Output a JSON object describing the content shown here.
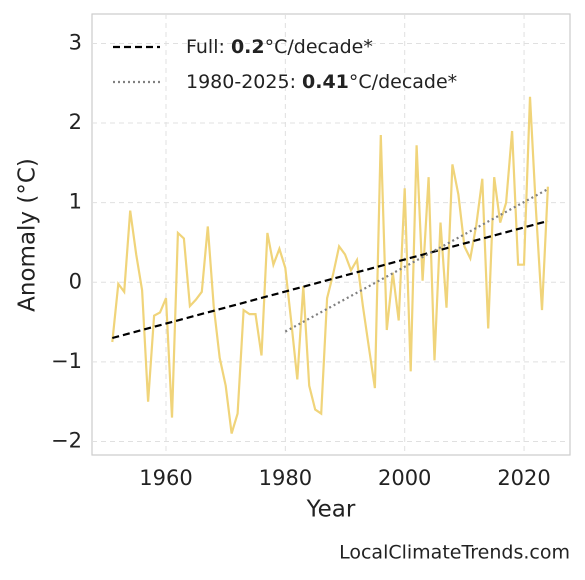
{
  "chart_data": {
    "type": "line",
    "xlabel": "Year",
    "ylabel": "Anomaly (°C)",
    "watermark": "LocalClimateTrends.com",
    "xlim": [
      1947.6,
      2027.7
    ],
    "xticks": [
      1960,
      1980,
      2000,
      2020
    ],
    "ylim": [
      -2.17,
      3.37
    ],
    "yticks": [
      {
        "value": -2,
        "label": "−2"
      },
      {
        "value": -1,
        "label": "−1"
      },
      0,
      1,
      2,
      3
    ],
    "grid": true,
    "legend": "upper left",
    "series": [
      {
        "color": "#f0d47a",
        "style": "solid",
        "x": [
          1951,
          1952,
          1953,
          1954,
          1955,
          1956,
          1957,
          1958,
          1959,
          1960,
          1961,
          1962,
          1963,
          1964,
          1965,
          1966,
          1967,
          1968,
          1969,
          1970,
          1971,
          1972,
          1973,
          1974,
          1975,
          1976,
          1977,
          1978,
          1979,
          1980,
          1981,
          1982,
          1983,
          1984,
          1985,
          1986,
          1987,
          1988,
          1989,
          1990,
          1991,
          1992,
          1993,
          1994,
          1995,
          1996,
          1997,
          1998,
          1999,
          2000,
          2001,
          2002,
          2003,
          2004,
          2005,
          2006,
          2007,
          2008,
          2009,
          2010,
          2011,
          2012,
          2013,
          2014,
          2015,
          2016,
          2017,
          2018,
          2019,
          2020,
          2021,
          2022,
          2023,
          2024
        ],
        "values": [
          -0.75,
          -0.02,
          -0.12,
          0.9,
          0.35,
          -0.1,
          -1.5,
          -0.42,
          -0.38,
          -0.2,
          -1.7,
          0.62,
          0.55,
          -0.3,
          -0.22,
          -0.12,
          0.7,
          -0.3,
          -0.95,
          -1.3,
          -1.9,
          -1.65,
          -0.35,
          -0.4,
          -0.4,
          -0.92,
          0.62,
          0.22,
          0.42,
          0.18,
          -0.5,
          -1.22,
          -0.05,
          -1.3,
          -1.6,
          -1.65,
          -0.2,
          0.1,
          0.45,
          0.35,
          0.15,
          0.28,
          -0.3,
          -0.82,
          -1.33,
          1.85,
          -0.6,
          0.12,
          -0.48,
          1.18,
          -1.12,
          1.72,
          0.02,
          1.32,
          -0.98,
          0.75,
          -0.32,
          1.48,
          1.1,
          0.45,
          0.3,
          0.72,
          1.3,
          -0.58,
          1.32,
          0.75,
          1.0,
          1.9,
          0.22,
          0.22,
          2.33,
          0.9,
          -0.35,
          1.2
        ]
      },
      {
        "color": "#000000",
        "style": "dashed",
        "label_prefix": "Full: ",
        "label_bold": "0.2",
        "label_suffix": "°C/decade*",
        "x": [
          1951,
          2024
        ],
        "values": [
          -0.7,
          0.77
        ]
      },
      {
        "color": "#808080",
        "style": "dotted",
        "label_prefix": "1980-2025: ",
        "label_bold": "0.41",
        "label_suffix": "°C/decade*",
        "x": [
          1980,
          2024
        ],
        "values": [
          -0.62,
          1.17
        ]
      }
    ]
  }
}
